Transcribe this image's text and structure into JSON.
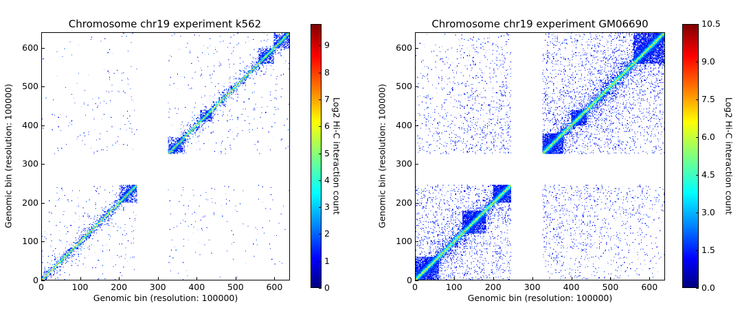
{
  "chart_data": [
    {
      "type": "heatmap",
      "title": "Chromosome chr19 experiment k562",
      "xlabel": "Genomic bin (resolution: 100000)",
      "ylabel": "Genomic bin (resolution: 100000)",
      "xlim": [
        0,
        640
      ],
      "ylim": [
        0,
        640
      ],
      "xticks": [
        "0",
        "100",
        "200",
        "300",
        "400",
        "500",
        "600"
      ],
      "yticks": [
        "0",
        "100",
        "200",
        "300",
        "400",
        "500",
        "600"
      ],
      "colorbar": {
        "label": "Log2 Hi-C interaction count",
        "range": [
          0,
          9.8
        ],
        "ticks": [
          "0",
          "1",
          "2",
          "3",
          "4",
          "5",
          "6",
          "7",
          "8",
          "9"
        ],
        "colormap": "jet"
      },
      "empty_bins": [
        245,
        325
      ],
      "diagonal_peak": 5,
      "background_density": 0.02
    },
    {
      "type": "heatmap",
      "title": "Chromosome chr19 experiment GM06690",
      "xlabel": "Genomic bin (resolution: 100000)",
      "ylabel": "Genomic bin (resolution: 100000)",
      "xlim": [
        0,
        640
      ],
      "ylim": [
        0,
        640
      ],
      "xticks": [
        "0",
        "100",
        "200",
        "300",
        "400",
        "500",
        "600"
      ],
      "yticks": [
        "0",
        "100",
        "200",
        "300",
        "400",
        "500",
        "600"
      ],
      "colorbar": {
        "label": "Log2 Hi-C interaction count",
        "range": [
          0,
          10.5
        ],
        "ticks": [
          "0.0",
          "1.5",
          "3.0",
          "4.5",
          "6.0",
          "7.5",
          "9.0",
          "10.5"
        ],
        "colormap": "jet"
      },
      "empty_bins": [
        245,
        325
      ],
      "diagonal_peak": 5,
      "background_density": 0.15
    }
  ]
}
